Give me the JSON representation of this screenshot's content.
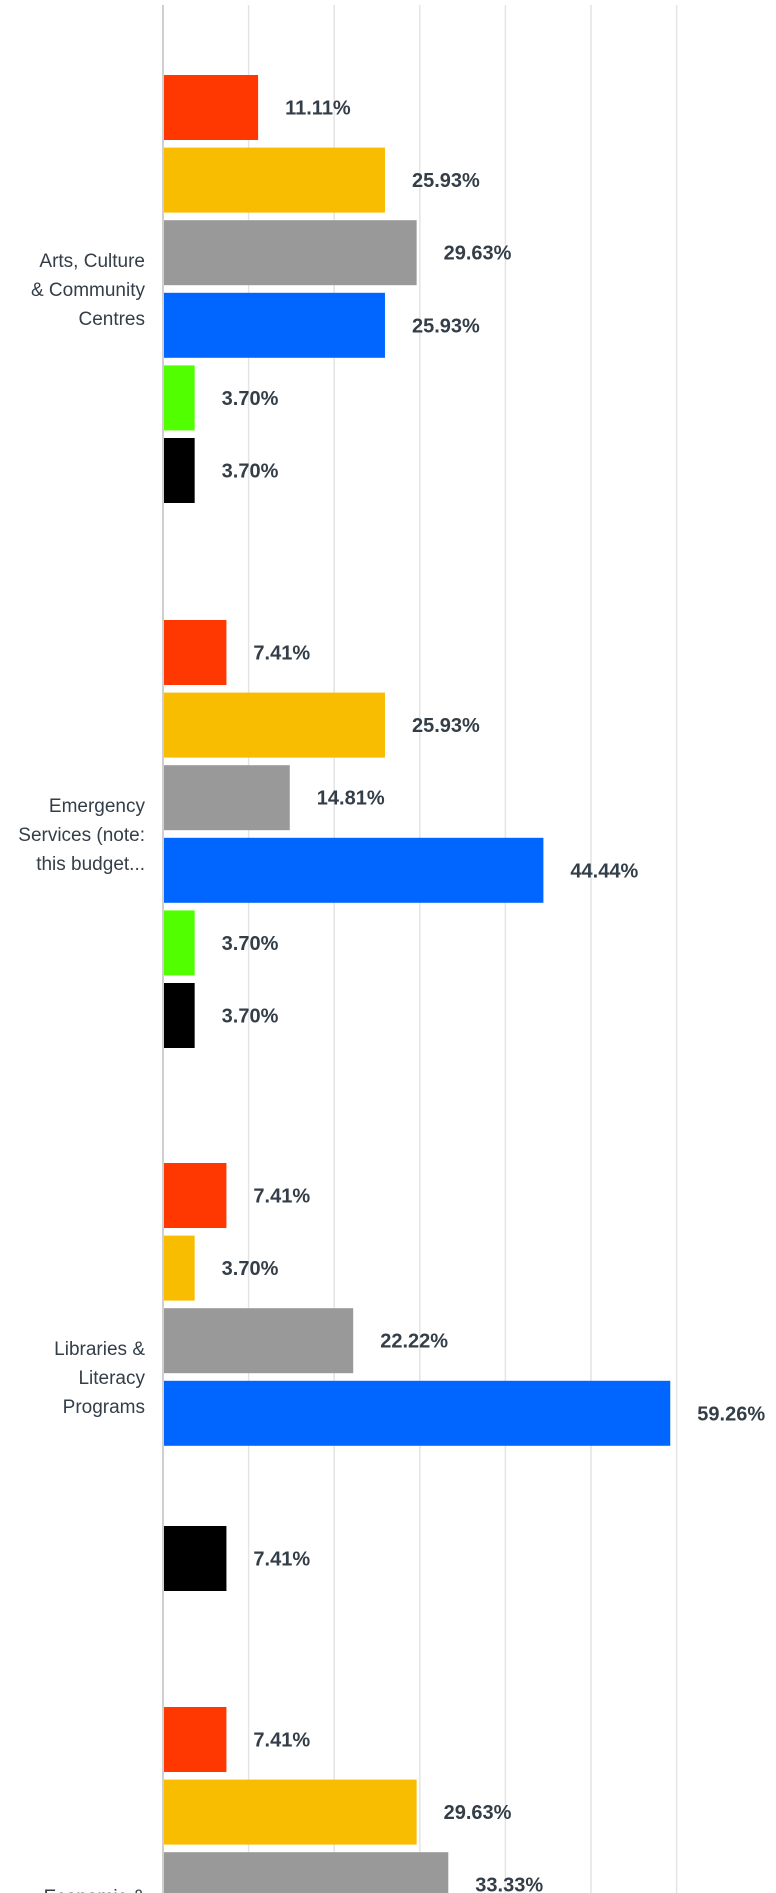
{
  "chart_data": {
    "type": "bar",
    "orientation": "horizontal",
    "grid": true,
    "xlim": [
      0,
      70
    ],
    "series_colors": [
      "#ff3700",
      "#f8bc00",
      "#999999",
      "#0066ff",
      "#52ff00",
      "#000000"
    ],
    "categories": [
      {
        "label_lines": [
          "Arts, Culture",
          "& Community",
          "Centres"
        ],
        "values": [
          11.11,
          25.93,
          29.63,
          25.93,
          3.7,
          3.7
        ],
        "labels": [
          "11.11%",
          "25.93%",
          "29.63%",
          "25.93%",
          "3.70%",
          "3.70%"
        ]
      },
      {
        "label_lines": [
          "Emergency",
          "Services (note:",
          "this budget..."
        ],
        "values": [
          7.41,
          25.93,
          14.81,
          44.44,
          3.7,
          3.7
        ],
        "labels": [
          "7.41%",
          "25.93%",
          "14.81%",
          "44.44%",
          "3.70%",
          "3.70%"
        ]
      },
      {
        "label_lines": [
          "Libraries &",
          "Literacy",
          "Programs"
        ],
        "values": [
          7.41,
          3.7,
          22.22,
          59.26,
          0,
          7.41
        ],
        "labels": [
          "7.41%",
          "3.70%",
          "22.22%",
          "59.26%",
          "",
          "7.41%"
        ]
      },
      {
        "label_lines": [
          "Economic &"
        ],
        "values": [
          7.41,
          29.63,
          33.33
        ],
        "labels": [
          "7.41%",
          "29.63%",
          "33.33%"
        ]
      }
    ]
  }
}
